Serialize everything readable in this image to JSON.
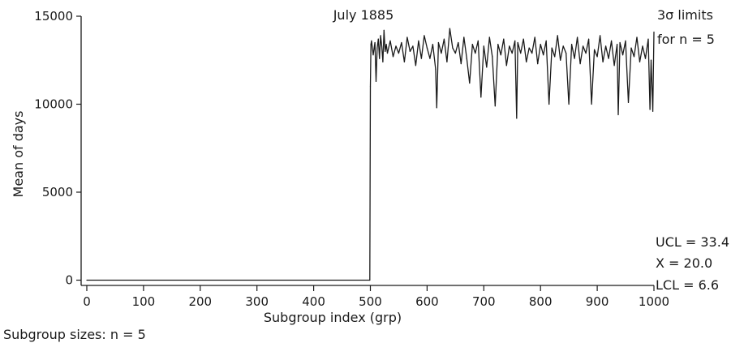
{
  "chart_data": {
    "type": "line",
    "title": "",
    "xlabel": "Subgroup index (grp)",
    "ylabel": "Mean of days",
    "xlim": [
      -10,
      1000
    ],
    "ylim": [
      -300,
      15000
    ],
    "x_ticks": [
      0,
      100,
      200,
      300,
      400,
      500,
      600,
      700,
      800,
      900,
      1000
    ],
    "y_ticks": [
      0,
      5000,
      10000,
      15000
    ],
    "x_tick_labels": [
      "0",
      "100",
      "200",
      "300",
      "400",
      "500",
      "600",
      "700",
      "800",
      "900",
      "1000"
    ],
    "y_tick_labels": [
      "0",
      "5000",
      "10000",
      "15000"
    ],
    "grid": false,
    "annotations": {
      "event": "July 1885",
      "limits_line1": "3σ limits",
      "limits_line2": "for n = 5",
      "ucl": "UCL = 33.4",
      "center": "X = 20.0",
      "lcl": "LCL = 6.6",
      "subgroup_note": "Subgroup sizes: n = 5"
    },
    "series": [
      {
        "values_description_free": true,
        "x": [
          0,
          499,
          500,
          501,
          502,
          505,
          508,
          510,
          512,
          514,
          516,
          518,
          520,
          522,
          524,
          526,
          528,
          530,
          535,
          540,
          545,
          550,
          555,
          560,
          565,
          570,
          575,
          580,
          585,
          590,
          595,
          600,
          605,
          610,
          615,
          617,
          620,
          625,
          630,
          635,
          640,
          645,
          650,
          655,
          660,
          665,
          670,
          675,
          680,
          685,
          690,
          695,
          700,
          705,
          710,
          715,
          720,
          725,
          730,
          735,
          740,
          745,
          750,
          755,
          758,
          760,
          765,
          770,
          775,
          780,
          785,
          790,
          795,
          800,
          805,
          810,
          815,
          820,
          825,
          830,
          835,
          840,
          845,
          850,
          855,
          860,
          865,
          870,
          875,
          880,
          885,
          890,
          895,
          900,
          905,
          910,
          915,
          920,
          925,
          930,
          935,
          937,
          940,
          945,
          950,
          955,
          960,
          965,
          970,
          975,
          980,
          985,
          990,
          993,
          995,
          998,
          1000
        ],
        "y": [
          0,
          0,
          11000,
          13400,
          13600,
          12800,
          13500,
          11300,
          13200,
          13700,
          12600,
          13900,
          13300,
          12400,
          14200,
          13000,
          13400,
          12900,
          13600,
          12700,
          13300,
          12900,
          13500,
          12400,
          13800,
          13000,
          13300,
          12200,
          13600,
          12600,
          13900,
          13200,
          12600,
          13400,
          12000,
          9800,
          13500,
          12900,
          13700,
          12400,
          14300,
          13200,
          12900,
          13500,
          12300,
          13800,
          12600,
          11200,
          13400,
          12900,
          13600,
          10400,
          13300,
          12100,
          13800,
          12700,
          9900,
          13400,
          12800,
          13700,
          12200,
          13300,
          12900,
          13600,
          9200,
          13500,
          12900,
          13700,
          12400,
          13200,
          12900,
          13800,
          12300,
          13400,
          12800,
          13600,
          10000,
          13200,
          12700,
          13900,
          12500,
          13300,
          12900,
          10000,
          13400,
          12600,
          13800,
          12300,
          13300,
          12900,
          13700,
          10000,
          13100,
          12700,
          13900,
          12400,
          13300,
          12600,
          13600,
          12200,
          13400,
          9400,
          13500,
          12800,
          13600,
          10100,
          13200,
          12700,
          13800,
          12400,
          13300,
          12600,
          13700,
          9700,
          12500,
          9600,
          14100
        ]
      }
    ]
  }
}
